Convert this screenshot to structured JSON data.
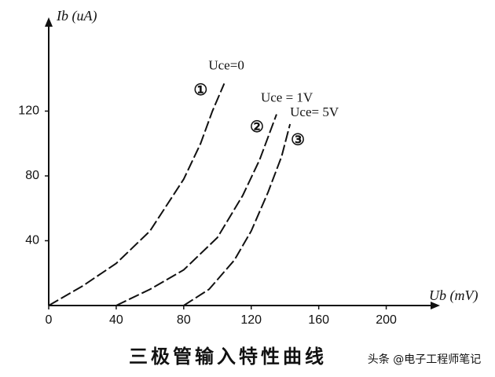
{
  "chart_data": {
    "type": "line",
    "title": "三极管输入特性曲线",
    "watermark": "头条 @电子工程师笔记",
    "x_label": "Ub (mV)",
    "y_label": "Ib (uA)",
    "xlim": [
      0,
      230
    ],
    "ylim": [
      0,
      175
    ],
    "xticks": [
      0,
      40,
      80,
      120,
      160,
      200
    ],
    "yticks": [
      40,
      80,
      120
    ],
    "grid": false,
    "series": [
      {
        "name": "Uce=0",
        "marker": "①",
        "color": "#111111",
        "x": [
          0,
          20,
          40,
          60,
          80,
          90,
          97,
          104
        ],
        "values": [
          0,
          12,
          26,
          46,
          78,
          100,
          120,
          137
        ]
      },
      {
        "name": "Uce = 1V",
        "marker": "②",
        "color": "#111111",
        "x": [
          40,
          60,
          80,
          100,
          115,
          125,
          135
        ],
        "values": [
          0,
          10,
          22,
          42,
          68,
          90,
          118
        ]
      },
      {
        "name": "Uce= 5V",
        "marker": "③",
        "color": "#111111",
        "x": [
          80,
          95,
          110,
          120,
          130,
          138,
          143
        ],
        "values": [
          0,
          10,
          28,
          46,
          70,
          92,
          112
        ]
      }
    ]
  }
}
